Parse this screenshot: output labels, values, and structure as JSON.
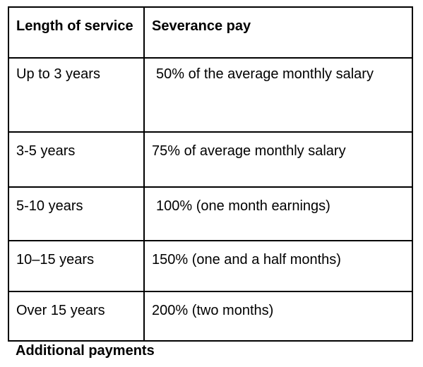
{
  "table": {
    "headers": [
      "Length of service",
      "Severance pay"
    ],
    "rows": [
      {
        "service": "Up to 3 years",
        "pay": "50% of the average monthly salary"
      },
      {
        "service": "3-5 years",
        "pay": "75% of average monthly salary"
      },
      {
        "service": "5-10 years",
        "pay": "100% (one month earnings)"
      },
      {
        "service": "10–15 years",
        "pay": "150% (one and a half months)"
      },
      {
        "service": "Over 15 years",
        "pay": "200% (two months)"
      }
    ]
  },
  "footer": {
    "heading": "Additional payments"
  }
}
